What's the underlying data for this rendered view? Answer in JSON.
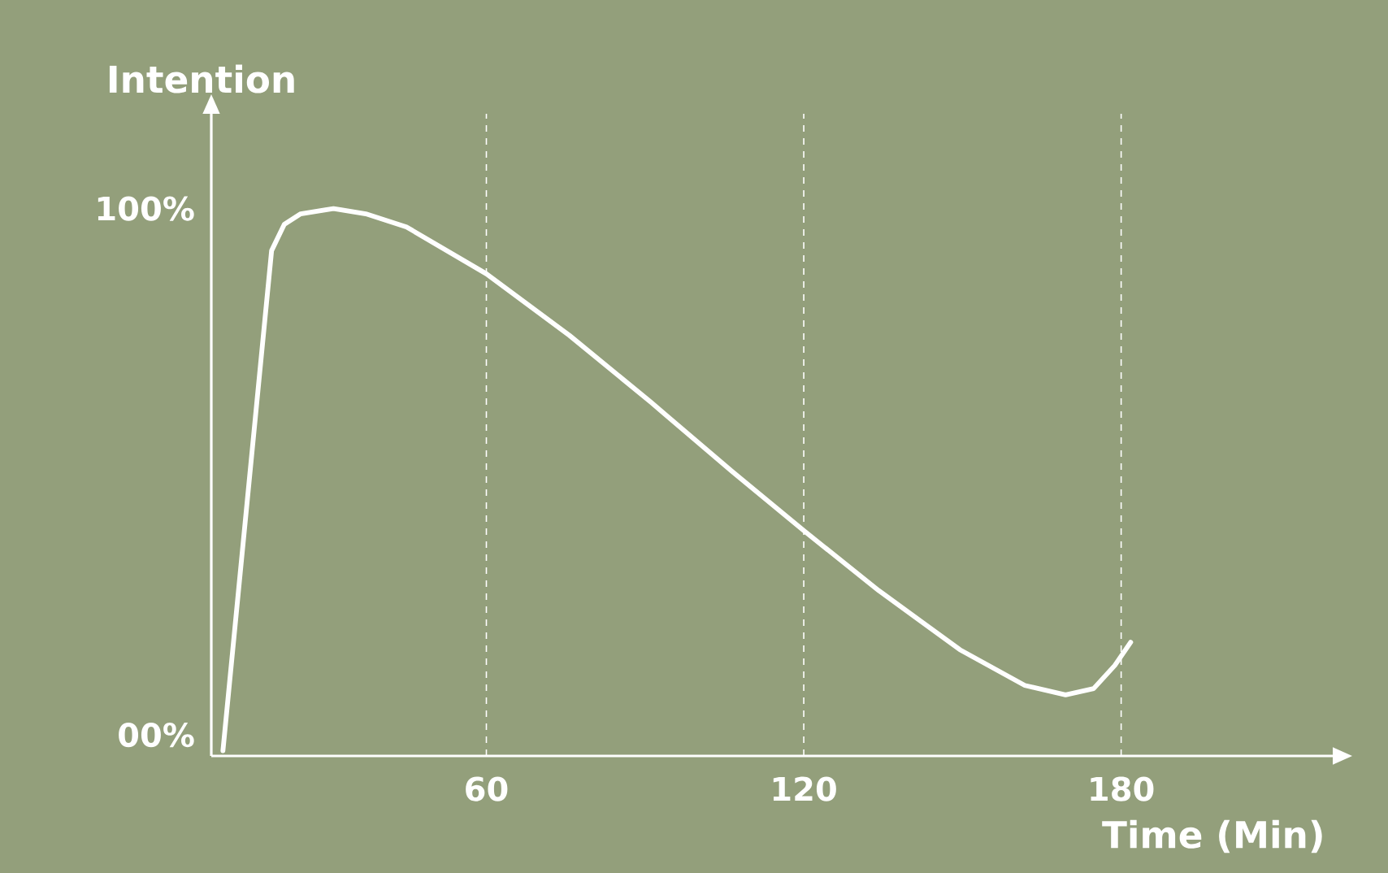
{
  "chart_data": {
    "type": "line",
    "xlabel": "Time (Min)",
    "ylabel": "Intention",
    "x": [
      10.2,
      19.4,
      21.8,
      24.9,
      31.1,
      37.2,
      44.9,
      60,
      75.7,
      91.1,
      106.5,
      120,
      134.2,
      149.5,
      161.8,
      169.5,
      174.8,
      178.8,
      181.8
    ],
    "series": [
      {
        "color": "#ffffff",
        "values": [
          -3,
          92,
          97,
          99,
          100,
          99,
          96.5,
          87.6,
          75.9,
          63.2,
          50,
          38.8,
          27.4,
          16.2,
          9.4,
          7.6,
          8.8,
          13.2,
          17.6
        ]
      }
    ],
    "xlim": [
      8,
      220
    ],
    "ylim": [
      -4,
      118
    ],
    "xticks": [
      60,
      120,
      180
    ],
    "yticks": [
      {
        "value": 0,
        "label": "00%"
      },
      {
        "value": 100,
        "label": "100%"
      }
    ],
    "grid": "x",
    "legend": false,
    "marker": "none",
    "line_style": "solid"
  }
}
